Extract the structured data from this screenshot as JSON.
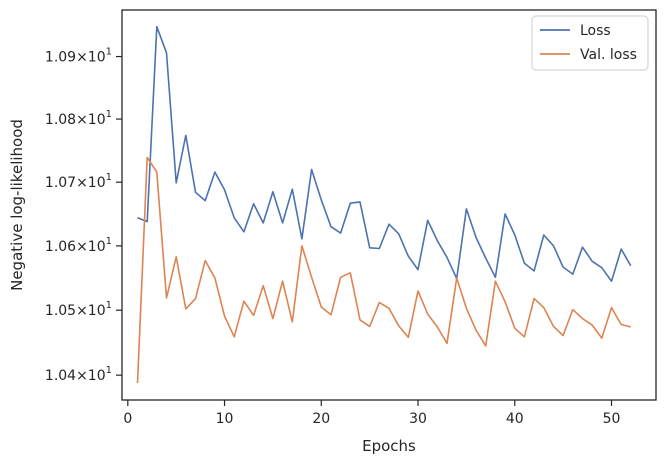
{
  "chart_data": {
    "type": "line",
    "xlabel": "Epochs",
    "ylabel": "Negative log-likelihood",
    "y_scale": "log",
    "xlim": [
      -0.6,
      54.6
    ],
    "ylim": [
      10.362,
      10.975
    ],
    "x_ticks": [
      0,
      10,
      20,
      30,
      40,
      50
    ],
    "y_ticks": [
      10.4,
      10.5,
      10.6,
      10.7,
      10.8,
      10.9
    ],
    "y_tick_labels": [
      {
        "base": "1.04",
        "exp": "1"
      },
      {
        "base": "1.05",
        "exp": "1"
      },
      {
        "base": "1.06",
        "exp": "1"
      },
      {
        "base": "1.07",
        "exp": "1"
      },
      {
        "base": "1.08",
        "exp": "1"
      },
      {
        "base": "1.09",
        "exp": "1"
      }
    ],
    "grid": false,
    "legend_position": "top-right",
    "x": [
      1,
      2,
      3,
      4,
      5,
      6,
      7,
      8,
      9,
      10,
      11,
      12,
      13,
      14,
      15,
      16,
      17,
      18,
      19,
      20,
      21,
      22,
      23,
      24,
      25,
      26,
      27,
      28,
      29,
      30,
      31,
      32,
      33,
      34,
      35,
      36,
      37,
      38,
      39,
      40,
      41,
      42,
      43,
      44,
      45,
      46,
      47,
      48,
      49,
      50,
      51,
      52
    ],
    "series": [
      {
        "name": "Loss",
        "color": "#4c72b0",
        "values": [
          10.644,
          10.638,
          10.948,
          10.906,
          10.699,
          10.774,
          10.684,
          10.671,
          10.716,
          10.688,
          10.644,
          10.622,
          10.666,
          10.636,
          10.685,
          10.636,
          10.689,
          10.611,
          10.72,
          10.672,
          10.63,
          10.62,
          10.667,
          10.669,
          10.597,
          10.596,
          10.634,
          10.619,
          10.584,
          10.563,
          10.64,
          10.608,
          10.582,
          10.549,
          10.658,
          10.613,
          10.581,
          10.551,
          10.65,
          10.617,
          10.573,
          10.561,
          10.617,
          10.6,
          10.567,
          10.556,
          10.598,
          10.576,
          10.566,
          10.545,
          10.595,
          10.569
        ]
      },
      {
        "name": "Val. loss",
        "color": "#dd8452",
        "values": [
          10.388,
          10.739,
          10.716,
          10.519,
          10.583,
          10.502,
          10.518,
          10.577,
          10.55,
          10.491,
          10.459,
          10.514,
          10.492,
          10.538,
          10.487,
          10.545,
          10.482,
          10.6,
          10.551,
          10.505,
          10.493,
          10.551,
          10.558,
          10.485,
          10.475,
          10.512,
          10.503,
          10.476,
          10.458,
          10.53,
          10.494,
          10.474,
          10.449,
          10.55,
          10.503,
          10.469,
          10.445,
          10.545,
          10.513,
          10.472,
          10.459,
          10.518,
          10.504,
          10.475,
          10.461,
          10.501,
          10.487,
          10.477,
          10.457,
          10.504,
          10.478,
          10.474
        ]
      }
    ]
  }
}
